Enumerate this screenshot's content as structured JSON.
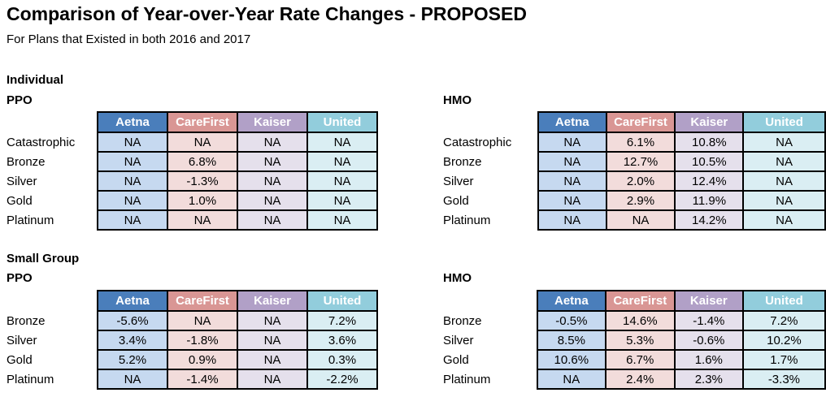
{
  "page": {
    "title": "Comparison of Year-over-Year Rate Changes - PROPOSED",
    "subtitle": "For Plans that Existed in both 2016 and 2017"
  },
  "colors": {
    "header_bg": [
      "#4A7EBB",
      "#D99694",
      "#B1A0C7",
      "#92CDDC"
    ],
    "cell_bg": [
      "#C6D9F0",
      "#F2DCDB",
      "#E5E0EC",
      "#DAEEF3"
    ],
    "header_text": "#FFFFFF",
    "cell_text": "#000000",
    "border": "#000000"
  },
  "sections": [
    {
      "name": "Individual",
      "tables": [
        {
          "plan_type": "PPO",
          "data_index": 0
        },
        {
          "plan_type": "HMO",
          "data_index": 1
        }
      ]
    },
    {
      "name": "Small Group",
      "tables": [
        {
          "plan_type": "PPO",
          "data_index": 2
        },
        {
          "plan_type": "HMO",
          "data_index": 3
        }
      ]
    }
  ],
  "chart_data": [
    {
      "type": "table",
      "title": "Individual PPO",
      "columns": [
        "Aetna",
        "CareFirst",
        "Kaiser",
        "United"
      ],
      "row_labels": [
        "Catastrophic",
        "Bronze",
        "Silver",
        "Gold",
        "Platinum"
      ],
      "rows": [
        [
          "NA",
          "NA",
          "NA",
          "NA"
        ],
        [
          "NA",
          "6.8%",
          "NA",
          "NA"
        ],
        [
          "NA",
          "-1.3%",
          "NA",
          "NA"
        ],
        [
          "NA",
          "1.0%",
          "NA",
          "NA"
        ],
        [
          "NA",
          "NA",
          "NA",
          "NA"
        ]
      ]
    },
    {
      "type": "table",
      "title": "Individual HMO",
      "columns": [
        "Aetna",
        "CareFirst",
        "Kaiser",
        "United"
      ],
      "row_labels": [
        "Catastrophic",
        "Bronze",
        "Silver",
        "Gold",
        "Platinum"
      ],
      "rows": [
        [
          "NA",
          "6.1%",
          "10.8%",
          "NA"
        ],
        [
          "NA",
          "12.7%",
          "10.5%",
          "NA"
        ],
        [
          "NA",
          "2.0%",
          "12.4%",
          "NA"
        ],
        [
          "NA",
          "2.9%",
          "11.9%",
          "NA"
        ],
        [
          "NA",
          "NA",
          "14.2%",
          "NA"
        ]
      ]
    },
    {
      "type": "table",
      "title": "Small Group PPO",
      "columns": [
        "Aetna",
        "CareFirst",
        "Kaiser",
        "United"
      ],
      "row_labels": [
        "Bronze",
        "Silver",
        "Gold",
        "Platinum"
      ],
      "rows": [
        [
          "-5.6%",
          "NA",
          "NA",
          "7.2%"
        ],
        [
          "3.4%",
          "-1.8%",
          "NA",
          "3.6%"
        ],
        [
          "5.2%",
          "0.9%",
          "NA",
          "0.3%"
        ],
        [
          "NA",
          "-1.4%",
          "NA",
          "-2.2%"
        ]
      ]
    },
    {
      "type": "table",
      "title": "Small Group HMO",
      "columns": [
        "Aetna",
        "CareFirst",
        "Kaiser",
        "United"
      ],
      "row_labels": [
        "Bronze",
        "Silver",
        "Gold",
        "Platinum"
      ],
      "rows": [
        [
          "-0.5%",
          "14.6%",
          "-1.4%",
          "7.2%"
        ],
        [
          "8.5%",
          "5.3%",
          "-0.6%",
          "10.2%"
        ],
        [
          "10.6%",
          "6.7%",
          "1.6%",
          "1.7%"
        ],
        [
          "NA",
          "2.4%",
          "2.3%",
          "-3.3%"
        ]
      ]
    }
  ]
}
